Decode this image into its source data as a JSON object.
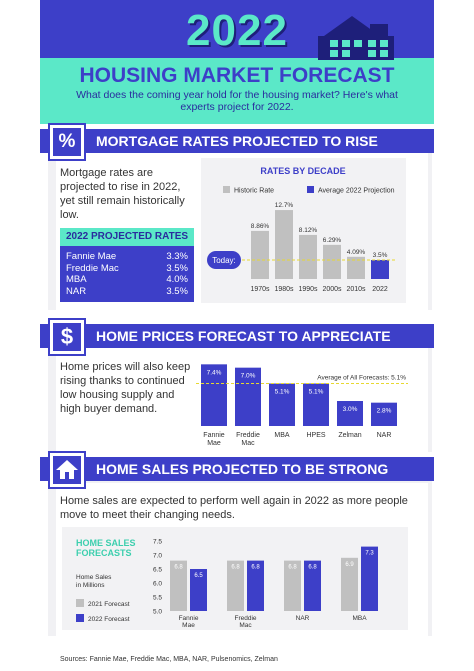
{
  "header": {
    "year": "2022",
    "title": "HOUSING MARKET FORECAST",
    "subtitle": "What does the coming year hold for the housing market? Here's what experts project for 2022."
  },
  "section1": {
    "badge": "%",
    "title": "MORTGAGE RATES PROJECTED TO RISE",
    "text": "Mortgage rates are projected to rise in 2022, yet still remain historically low.",
    "table": {
      "title": "2022 PROJECTED RATES",
      "rows": [
        {
          "name": "Fannie Mae",
          "value": "3.3%"
        },
        {
          "name": "Freddie Mac",
          "value": "3.5%"
        },
        {
          "name": "MBA",
          "value": "4.0%"
        },
        {
          "name": "NAR",
          "value": "3.5%"
        }
      ]
    }
  },
  "section2": {
    "badge": "$",
    "title": "HOME PRICES FORECAST TO APPRECIATE",
    "text": "Home prices will also keep rising thanks to continued low housing supply and high buyer demand."
  },
  "section3": {
    "title": "HOME SALES PROJECTED TO BE STRONG",
    "text": "Home sales are expected to perform well again in 2022 as more people move to meet their changing needs."
  },
  "footer": "Sources: Fannie Mae, Freddie Mac, MBA, NAR, Pulsenomics, Zelman",
  "colors": {
    "primary": "#3d3fc8",
    "accent": "#5be8c8",
    "historic": "#c0c0c0",
    "today_line": "#e8d830"
  },
  "chart_data": [
    {
      "type": "bar",
      "title": "RATES BY DECADE",
      "legend": [
        "Historic Rate",
        "Average 2022 Projection"
      ],
      "categories": [
        "1970s",
        "1980s",
        "1990s",
        "2000s",
        "2010s",
        "2022"
      ],
      "values": [
        8.86,
        12.7,
        8.12,
        6.29,
        4.09,
        3.5
      ],
      "labels": [
        "8.86%",
        "12.7%",
        "8.12%",
        "6.29%",
        "4.09%",
        "3.5%"
      ],
      "today_label": "Today:",
      "ylim": [
        0,
        14
      ]
    },
    {
      "type": "bar",
      "categories": [
        "Fannie Mae",
        "Freddie Mac",
        "MBA",
        "HPES",
        "Zelman",
        "NAR"
      ],
      "values": [
        7.4,
        7.0,
        5.1,
        5.1,
        3.0,
        2.8
      ],
      "labels": [
        "7.4%",
        "7.0%",
        "5.1%",
        "5.1%",
        "3.0%",
        "2.8%"
      ],
      "average_label": "Average of All Forecasts: 5.1%",
      "average": 5.1,
      "ylim": [
        0,
        7.8
      ]
    },
    {
      "type": "bar",
      "title": "HOME SALES FORECASTS",
      "ylabel": "Home Sales in Millions",
      "legend": [
        "2021 Forecast",
        "2022 Forecast"
      ],
      "categories": [
        "Fannie Mae",
        "Freddie Mac",
        "NAR",
        "MBA"
      ],
      "series": [
        {
          "name": "2021 Forecast",
          "values": [
            6.8,
            6.8,
            6.8,
            6.9
          ]
        },
        {
          "name": "2022 Forecast",
          "values": [
            6.5,
            6.8,
            6.8,
            7.3
          ]
        }
      ],
      "yticks": [
        "7.5",
        "7.0",
        "6.5",
        "6.0",
        "5.5",
        "5.0"
      ],
      "ylim": [
        5.0,
        7.5
      ]
    }
  ]
}
